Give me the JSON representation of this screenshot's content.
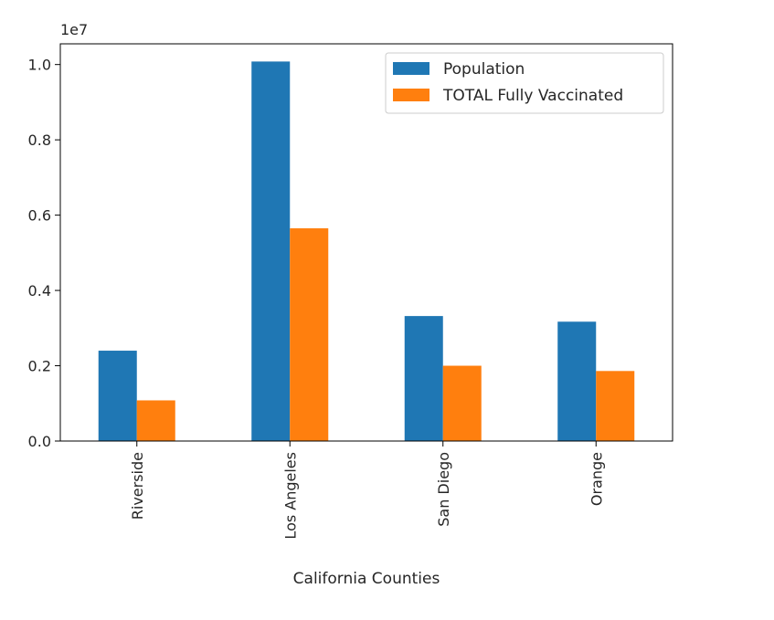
{
  "chart_data": {
    "type": "bar",
    "title": "",
    "xlabel": "California Counties",
    "ylabel": "",
    "y_offset_text": "1e7",
    "ylim": [
      0,
      1.055
    ],
    "y_scale_multiplier": 10000000,
    "yticks": [
      "0.0",
      "0.2",
      "0.4",
      "0.6",
      "0.8",
      "1.0"
    ],
    "ytick_values": [
      0,
      0.2,
      0.4,
      0.6,
      0.8,
      1.0
    ],
    "categories": [
      "Riverside",
      "Los Angeles",
      "San Diego",
      "Orange"
    ],
    "x_tick_rotation": "vertical",
    "grid": false,
    "legend_position": "upper right",
    "series": [
      {
        "name": "Population",
        "color": "#1f77b4",
        "values": [
          0.24,
          1.008,
          0.332,
          0.317
        ]
      },
      {
        "name": "TOTAL Fully Vaccinated",
        "color": "#ff7f0e",
        "values": [
          0.108,
          0.565,
          0.2,
          0.186
        ]
      }
    ]
  }
}
